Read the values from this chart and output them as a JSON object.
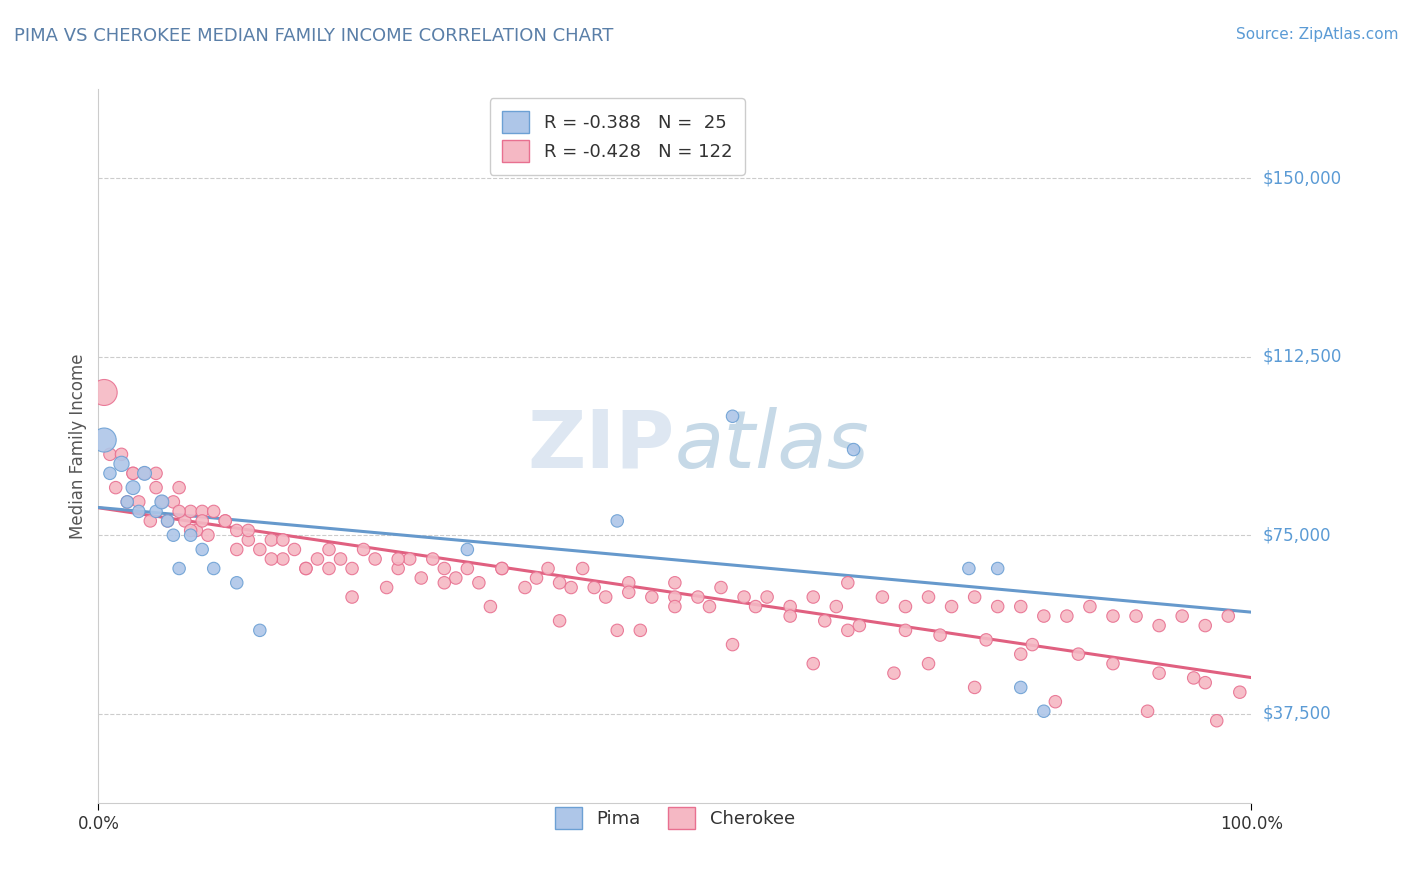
{
  "title": "PIMA VS CHEROKEE MEDIAN FAMILY INCOME CORRELATION CHART",
  "title_color": "#5a7fa8",
  "source_text": "Source: ZipAtlas.com",
  "ylabel": "Median Family Income",
  "xlim": [
    0,
    1
  ],
  "ylim": [
    18750,
    168750
  ],
  "yticks": [
    37500,
    75000,
    112500,
    150000
  ],
  "ytick_labels": [
    "$37,500",
    "$75,000",
    "$112,500",
    "$150,000"
  ],
  "watermark": "ZIPatlas",
  "pima_color": "#aec6e8",
  "pima_edge_color": "#6ca0d4",
  "cherokee_color": "#f5b8c4",
  "cherokee_edge_color": "#e87090",
  "regression_color_pima": "#6699cc",
  "regression_color_cherokee": "#e06080",
  "background_color": "#ffffff",
  "grid_color": "#cccccc",
  "pima_x": [
    0.005,
    0.01,
    0.02,
    0.025,
    0.03,
    0.035,
    0.04,
    0.05,
    0.055,
    0.06,
    0.065,
    0.07,
    0.08,
    0.09,
    0.1,
    0.12,
    0.14,
    0.32,
    0.45,
    0.55,
    0.655,
    0.755,
    0.78,
    0.8,
    0.82
  ],
  "pima_y": [
    95000,
    88000,
    90000,
    82000,
    85000,
    80000,
    88000,
    80000,
    82000,
    78000,
    75000,
    68000,
    75000,
    72000,
    68000,
    65000,
    55000,
    72000,
    78000,
    100000,
    93000,
    68000,
    68000,
    43000,
    38000
  ],
  "pima_size": [
    300,
    80,
    120,
    80,
    100,
    80,
    100,
    80,
    100,
    80,
    80,
    80,
    80,
    80,
    80,
    80,
    80,
    80,
    80,
    80,
    80,
    80,
    80,
    80,
    80
  ],
  "cherokee_x": [
    0.005,
    0.01,
    0.015,
    0.02,
    0.025,
    0.03,
    0.035,
    0.04,
    0.045,
    0.05,
    0.055,
    0.06,
    0.065,
    0.07,
    0.075,
    0.08,
    0.085,
    0.09,
    0.095,
    0.1,
    0.11,
    0.12,
    0.13,
    0.14,
    0.15,
    0.16,
    0.17,
    0.18,
    0.19,
    0.2,
    0.21,
    0.22,
    0.24,
    0.26,
    0.27,
    0.28,
    0.3,
    0.31,
    0.33,
    0.35,
    0.37,
    0.39,
    0.41,
    0.42,
    0.44,
    0.46,
    0.48,
    0.5,
    0.52,
    0.54,
    0.56,
    0.58,
    0.6,
    0.62,
    0.64,
    0.65,
    0.68,
    0.7,
    0.72,
    0.74,
    0.76,
    0.78,
    0.8,
    0.82,
    0.84,
    0.86,
    0.88,
    0.9,
    0.92,
    0.94,
    0.96,
    0.98,
    0.03,
    0.05,
    0.07,
    0.09,
    0.11,
    0.13,
    0.16,
    0.2,
    0.23,
    0.26,
    0.29,
    0.32,
    0.35,
    0.38,
    0.4,
    0.43,
    0.46,
    0.5,
    0.53,
    0.57,
    0.6,
    0.63,
    0.66,
    0.7,
    0.73,
    0.77,
    0.81,
    0.85,
    0.88,
    0.92,
    0.96,
    0.99,
    0.08,
    0.12,
    0.18,
    0.25,
    0.34,
    0.4,
    0.47,
    0.55,
    0.62,
    0.69,
    0.76,
    0.83,
    0.91,
    0.97,
    0.15,
    0.3,
    0.5,
    0.65,
    0.8,
    0.95,
    0.22,
    0.45,
    0.72
  ],
  "cherokee_y": [
    105000,
    92000,
    85000,
    92000,
    82000,
    88000,
    82000,
    88000,
    78000,
    88000,
    82000,
    78000,
    82000,
    85000,
    78000,
    80000,
    76000,
    80000,
    75000,
    80000,
    78000,
    76000,
    74000,
    72000,
    74000,
    70000,
    72000,
    68000,
    70000,
    68000,
    70000,
    68000,
    70000,
    68000,
    70000,
    66000,
    68000,
    66000,
    65000,
    68000,
    64000,
    68000,
    64000,
    68000,
    62000,
    65000,
    62000,
    65000,
    62000,
    64000,
    62000,
    62000,
    60000,
    62000,
    60000,
    65000,
    62000,
    60000,
    62000,
    60000,
    62000,
    60000,
    60000,
    58000,
    58000,
    60000,
    58000,
    58000,
    56000,
    58000,
    56000,
    58000,
    88000,
    85000,
    80000,
    78000,
    78000,
    76000,
    74000,
    72000,
    72000,
    70000,
    70000,
    68000,
    68000,
    66000,
    65000,
    64000,
    63000,
    62000,
    60000,
    60000,
    58000,
    57000,
    56000,
    55000,
    54000,
    53000,
    52000,
    50000,
    48000,
    46000,
    44000,
    42000,
    76000,
    72000,
    68000,
    64000,
    60000,
    57000,
    55000,
    52000,
    48000,
    46000,
    43000,
    40000,
    38000,
    36000,
    70000,
    65000,
    60000,
    55000,
    50000,
    45000,
    62000,
    55000,
    48000
  ],
  "cherokee_size": [
    350,
    80,
    80,
    80,
    80,
    80,
    80,
    80,
    80,
    80,
    80,
    80,
    80,
    80,
    80,
    80,
    80,
    80,
    80,
    80,
    80,
    80,
    80,
    80,
    80,
    80,
    80,
    80,
    80,
    80,
    80,
    80,
    80,
    80,
    80,
    80,
    80,
    80,
    80,
    80,
    80,
    80,
    80,
    80,
    80,
    80,
    80,
    80,
    80,
    80,
    80,
    80,
    80,
    80,
    80,
    80,
    80,
    80,
    80,
    80,
    80,
    80,
    80,
    80,
    80,
    80,
    80,
    80,
    80,
    80,
    80,
    80,
    80,
    80,
    80,
    80,
    80,
    80,
    80,
    80,
    80,
    80,
    80,
    80,
    80,
    80,
    80,
    80,
    80,
    80,
    80,
    80,
    80,
    80,
    80,
    80,
    80,
    80,
    80,
    80,
    80,
    80,
    80,
    80,
    80,
    80,
    80,
    80,
    80,
    80,
    80,
    80,
    80,
    80,
    80,
    80,
    80,
    80,
    80,
    80,
    80,
    80,
    80,
    80,
    80,
    80,
    80
  ]
}
